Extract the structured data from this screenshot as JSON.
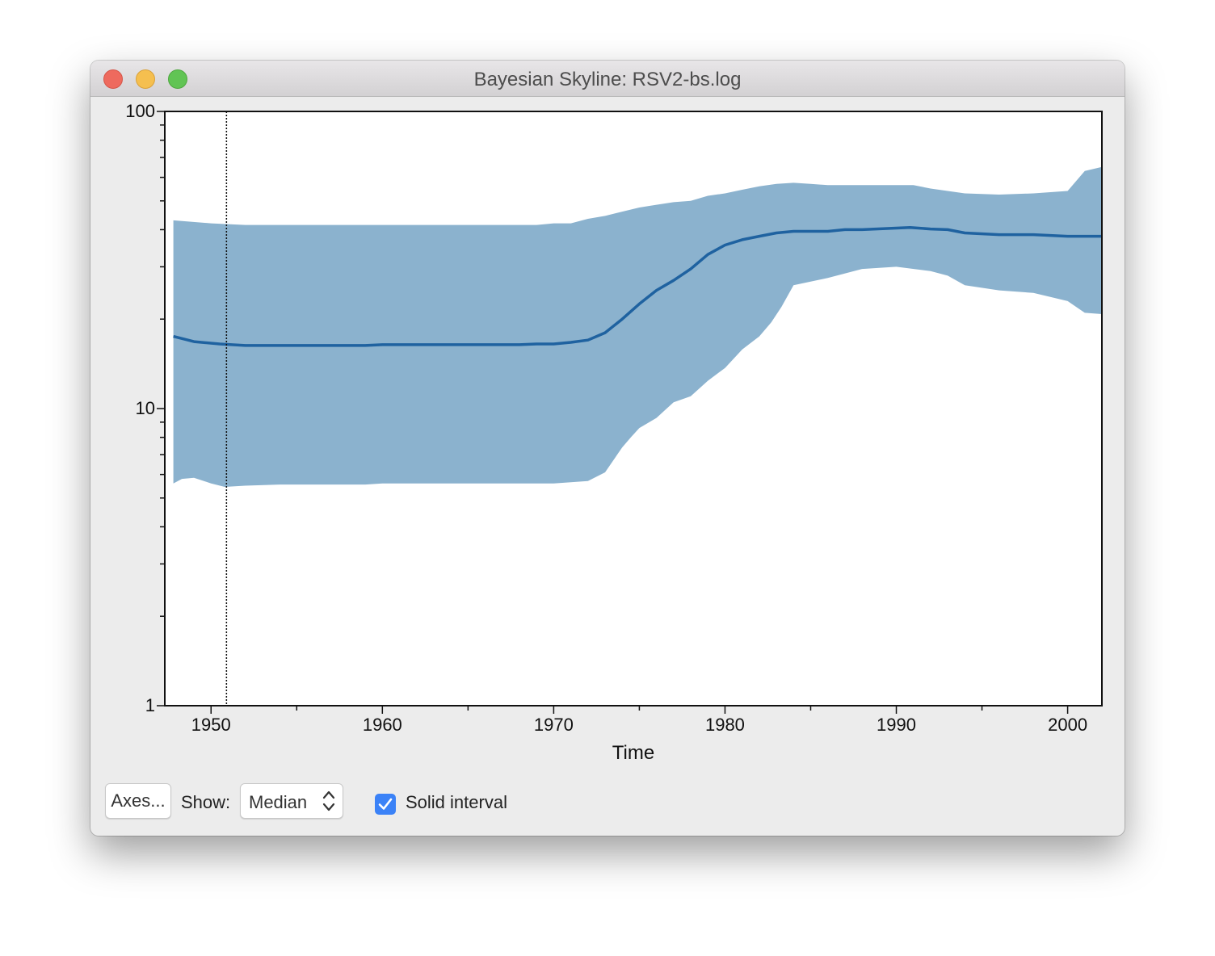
{
  "window": {
    "title": "Bayesian Skyline: RSV2-bs.log"
  },
  "chart_data": {
    "type": "area",
    "title": "",
    "xlabel": "Time",
    "ylabel": "",
    "xlim": [
      1947.3,
      2002
    ],
    "ylim": [
      1,
      100
    ],
    "yscale": "log",
    "grid": false,
    "x_ticks": [
      1950,
      1960,
      1970,
      1980,
      1990,
      2000
    ],
    "y_ticks": [
      1,
      10,
      100
    ],
    "marker_line_x": 1950.9,
    "colors": {
      "band": "#8bb2ce",
      "median": "#1f62a0"
    },
    "series": [
      {
        "name": "Median",
        "x": [
          1947.8,
          1949,
          1950.5,
          1952,
          1959,
          1960,
          1968,
          1969,
          1970,
          1971,
          1972,
          1973,
          1974,
          1975,
          1976,
          1977,
          1978,
          1979,
          1980,
          1981,
          1982,
          1983,
          1984,
          1986,
          1987,
          1988,
          1990,
          1990.8,
          1992,
          1993,
          1994,
          1996,
          1998,
          2000,
          2002
        ],
        "values": [
          17.5,
          16.8,
          16.5,
          16.3,
          16.3,
          16.4,
          16.4,
          16.5,
          16.5,
          16.7,
          17,
          18,
          20,
          22.5,
          25,
          27,
          29.5,
          33,
          35.5,
          37,
          38,
          39,
          39.5,
          39.5,
          40,
          40,
          40.5,
          40.7,
          40.2,
          40,
          39,
          38.5,
          38.5,
          38,
          38
        ]
      },
      {
        "name": "Upper",
        "x": [
          1947.8,
          1950,
          1952,
          1959,
          1960,
          1968,
          1969,
          1970,
          1971,
          1972,
          1973,
          1974,
          1975,
          1976,
          1977,
          1978,
          1979,
          1980,
          1981,
          1982,
          1983,
          1984,
          1985,
          1986,
          1988,
          1990,
          1991,
          1992,
          1993,
          1994,
          1996,
          1998,
          1999,
          2000,
          2001,
          2002
        ],
        "values": [
          43,
          42,
          41.5,
          41.5,
          41.5,
          41.5,
          41.5,
          42,
          42,
          43.5,
          44.5,
          46,
          47.5,
          48.5,
          49.5,
          50,
          52,
          53,
          54.5,
          56,
          57,
          57.5,
          57,
          56.5,
          56.5,
          56.5,
          56.5,
          55,
          54,
          53,
          52.5,
          53,
          53.5,
          54,
          63,
          65
        ]
      },
      {
        "name": "Lower",
        "x": [
          1947.8,
          1948.3,
          1949,
          1950,
          1950.8,
          1952,
          1954,
          1959,
          1960,
          1968,
          1969,
          1970,
          1971,
          1972,
          1973,
          1974,
          1974.5,
          1975,
          1976,
          1977,
          1978,
          1979,
          1980,
          1981,
          1982,
          1982.7,
          1983.3,
          1984,
          1986,
          1988,
          1990,
          1992,
          1993,
          1994,
          1996,
          1998,
          2000,
          2001,
          2002
        ],
        "values": [
          5.6,
          5.8,
          5.85,
          5.6,
          5.45,
          5.5,
          5.55,
          5.55,
          5.6,
          5.6,
          5.6,
          5.6,
          5.65,
          5.7,
          6.1,
          7.4,
          8,
          8.6,
          9.3,
          10.5,
          11,
          12.4,
          13.7,
          15.8,
          17.5,
          19.5,
          22,
          26,
          27.5,
          29.5,
          30,
          29,
          28,
          26,
          25,
          24.5,
          23,
          21,
          20.8
        ]
      }
    ]
  },
  "controls": {
    "axes_button": "Axes...",
    "show_label": "Show:",
    "show_select": "Median",
    "solid_interval_label": "Solid interval",
    "solid_interval_checked": true
  }
}
